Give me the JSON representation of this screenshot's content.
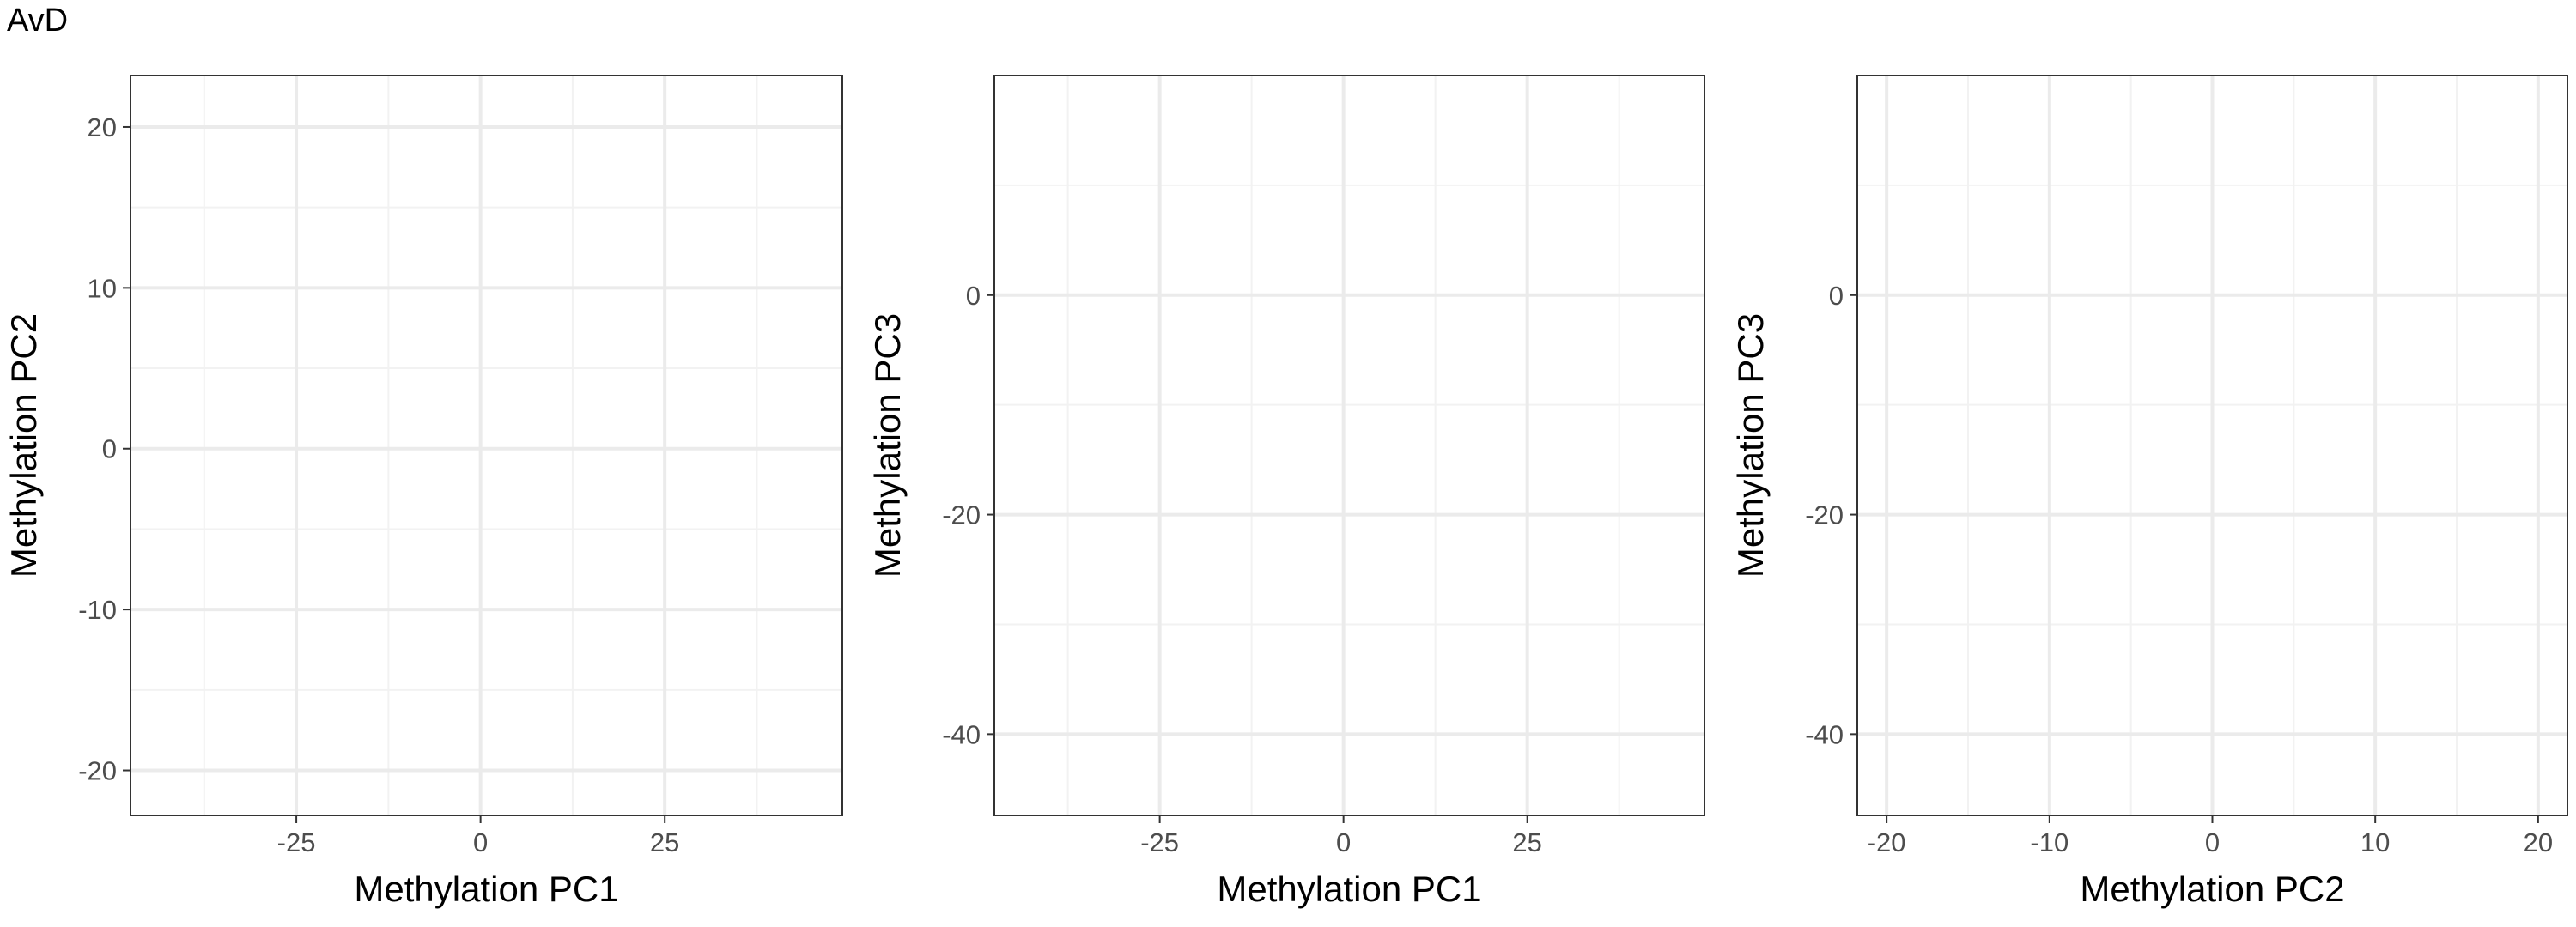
{
  "title": "AvD",
  "chart_data": [
    {
      "type": "scatter",
      "xlabel": "Methylation PC1",
      "ylabel": "Methylation PC2",
      "x": [],
      "y": [],
      "xlim": [
        -47.5,
        49.1
      ],
      "ylim": [
        -22.8,
        23.2
      ],
      "xticks": [
        -25,
        0,
        25
      ],
      "yticks": [
        -20,
        -10,
        0,
        10,
        20
      ],
      "grid": true
    },
    {
      "type": "scatter",
      "xlabel": "Methylation PC1",
      "ylabel": "Methylation PC3",
      "x": [],
      "y": [],
      "xlim": [
        -47.5,
        49.1
      ],
      "ylim": [
        -47.4,
        20
      ],
      "xticks": [
        -25,
        0,
        25
      ],
      "yticks": [
        -40,
        -20,
        0
      ],
      "grid": true
    },
    {
      "type": "scatter",
      "xlabel": "Methylation PC2",
      "ylabel": "Methylation PC3",
      "x": [],
      "y": [],
      "xlim": [
        -21.8,
        21.8
      ],
      "ylim": [
        -47.4,
        20
      ],
      "xticks": [
        -20,
        -10,
        0,
        10,
        20
      ],
      "yticks": [
        -40,
        -20,
        0
      ],
      "grid": true
    }
  ]
}
